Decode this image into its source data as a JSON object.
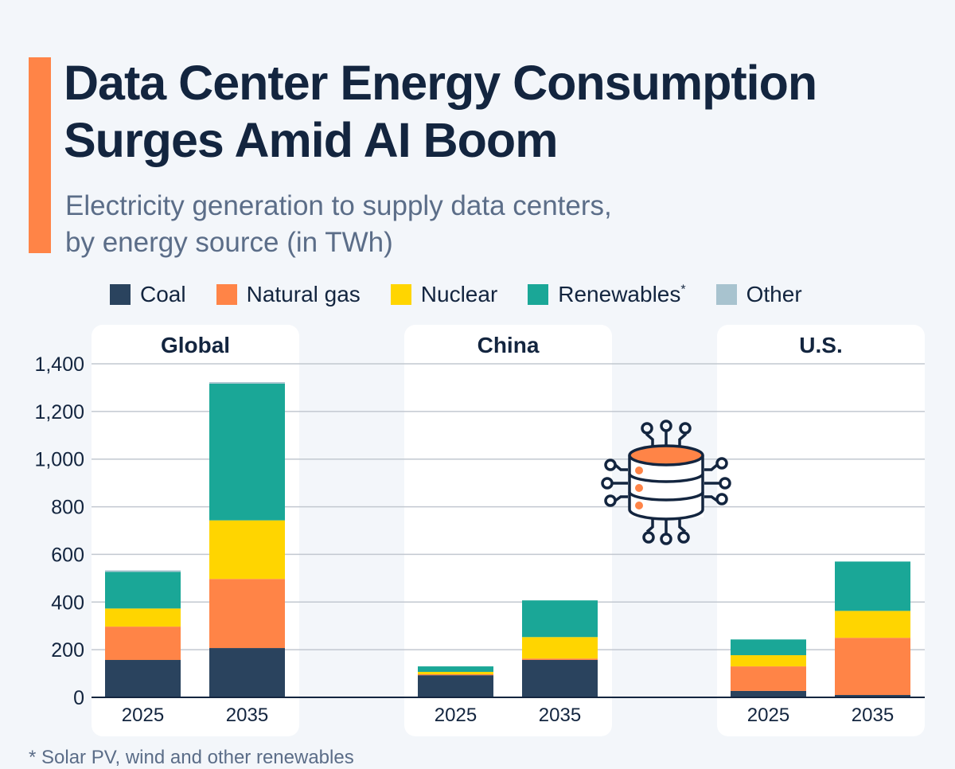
{
  "title": "Data Center Energy Consumption Surges Amid AI Boom",
  "title_lines": [
    "Data Center Energy Consumption",
    "Surges Amid AI Boom"
  ],
  "subtitle_lines": [
    "Electricity generation to supply data centers,",
    "by energy source (in TWh)"
  ],
  "footnote": "* Solar PV, wind and other renewables",
  "icon": "database-network-icon",
  "chart_data": {
    "type": "bar",
    "stacked": true,
    "title": "Data Center Energy Consumption Surges Amid AI Boom",
    "subtitle": "Electricity generation to supply data centers, by energy source (in TWh)",
    "ylim": [
      0,
      1400
    ],
    "yticks": [
      0,
      200,
      400,
      600,
      800,
      1000,
      1200,
      1400
    ],
    "ytick_labels": [
      "0",
      "200",
      "400",
      "600",
      "800",
      "1,000",
      "1,200",
      "1,400"
    ],
    "grid": true,
    "legend_position": "top",
    "legend": [
      {
        "name": "Coal",
        "color": "#2a435e"
      },
      {
        "name": "Natural gas",
        "color": "#ff8447"
      },
      {
        "name": "Nuclear",
        "color": "#ffd500"
      },
      {
        "name": "Renewables",
        "suffix": "*",
        "color": "#1aa797"
      },
      {
        "name": "Other",
        "color": "#a8c3cf"
      }
    ],
    "panels": [
      {
        "name": "Global",
        "categories": [
          "2025",
          "2035"
        ],
        "series": [
          {
            "name": "Coal",
            "values": [
              157,
              207
            ]
          },
          {
            "name": "Natural gas",
            "values": [
              140,
              290
            ]
          },
          {
            "name": "Nuclear",
            "values": [
              76,
              246
            ]
          },
          {
            "name": "Renewables",
            "values": [
              154,
              574
            ]
          },
          {
            "name": "Other",
            "values": [
              6,
              6
            ]
          }
        ]
      },
      {
        "name": "China",
        "categories": [
          "2025",
          "2035"
        ],
        "series": [
          {
            "name": "Coal",
            "values": [
              93,
              157
            ]
          },
          {
            "name": "Natural gas",
            "values": [
              4,
              6
            ]
          },
          {
            "name": "Nuclear",
            "values": [
              10,
              90
            ]
          },
          {
            "name": "Renewables",
            "values": [
              23,
              154
            ]
          },
          {
            "name": "Other",
            "values": [
              0,
              0
            ]
          }
        ]
      },
      {
        "name": "U.S.",
        "categories": [
          "2025",
          "2035"
        ],
        "series": [
          {
            "name": "Coal",
            "values": [
              27,
              10
            ]
          },
          {
            "name": "Natural gas",
            "values": [
              103,
              240
            ]
          },
          {
            "name": "Nuclear",
            "values": [
              47,
              113
            ]
          },
          {
            "name": "Renewables",
            "values": [
              66,
              207
            ]
          },
          {
            "name": "Other",
            "values": [
              0,
              0
            ]
          }
        ]
      }
    ]
  }
}
